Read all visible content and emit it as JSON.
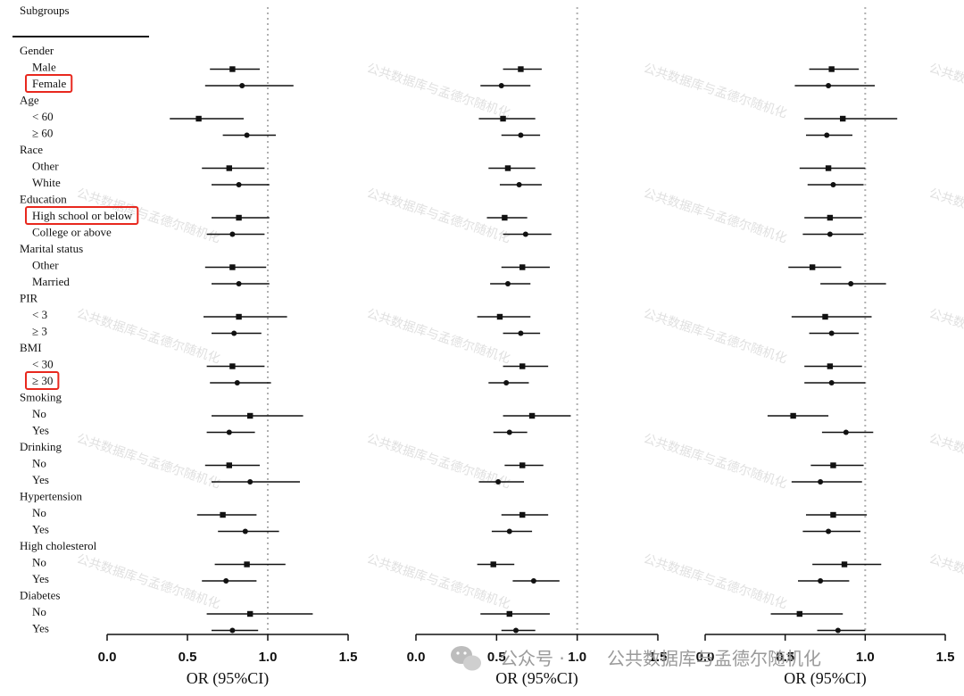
{
  "header": {
    "subgroups_label": "Subgroups"
  },
  "rows": [
    {
      "text": "Gender",
      "indent": false,
      "highlight": false
    },
    {
      "text": "Male",
      "indent": true,
      "highlight": false
    },
    {
      "text": "Female",
      "indent": true,
      "highlight": true
    },
    {
      "text": "Age",
      "indent": false,
      "highlight": false
    },
    {
      "text": "< 60",
      "indent": true,
      "highlight": false
    },
    {
      "text": "≥ 60",
      "indent": true,
      "highlight": false
    },
    {
      "text": "Race",
      "indent": false,
      "highlight": false
    },
    {
      "text": "Other",
      "indent": true,
      "highlight": false
    },
    {
      "text": "White",
      "indent": true,
      "highlight": false
    },
    {
      "text": "Education",
      "indent": false,
      "highlight": false
    },
    {
      "text": "High school or below",
      "indent": true,
      "highlight": true
    },
    {
      "text": "College or above",
      "indent": true,
      "highlight": false
    },
    {
      "text": "Marital status",
      "indent": false,
      "highlight": false
    },
    {
      "text": "Other",
      "indent": true,
      "highlight": false
    },
    {
      "text": "Married",
      "indent": true,
      "highlight": false
    },
    {
      "text": "PIR",
      "indent": false,
      "highlight": false
    },
    {
      "text": "< 3",
      "indent": true,
      "highlight": false
    },
    {
      "text": "≥ 3",
      "indent": true,
      "highlight": false
    },
    {
      "text": "BMI",
      "indent": false,
      "highlight": false
    },
    {
      "text": "< 30",
      "indent": true,
      "highlight": false
    },
    {
      "text": "≥ 30",
      "indent": true,
      "highlight": true
    },
    {
      "text": "Smoking",
      "indent": false,
      "highlight": false
    },
    {
      "text": "No",
      "indent": true,
      "highlight": false
    },
    {
      "text": "Yes",
      "indent": true,
      "highlight": false
    },
    {
      "text": "Drinking",
      "indent": false,
      "highlight": false
    },
    {
      "text": "No",
      "indent": true,
      "highlight": false
    },
    {
      "text": "Yes",
      "indent": true,
      "highlight": false
    },
    {
      "text": "Hypertension",
      "indent": false,
      "highlight": false
    },
    {
      "text": "No",
      "indent": true,
      "highlight": false
    },
    {
      "text": "Yes",
      "indent": true,
      "highlight": false
    },
    {
      "text": "High cholesterol",
      "indent": false,
      "highlight": false
    },
    {
      "text": "No",
      "indent": true,
      "highlight": false
    },
    {
      "text": "Yes",
      "indent": true,
      "highlight": false
    },
    {
      "text": "Diabetes",
      "indent": false,
      "highlight": false
    },
    {
      "text": "No",
      "indent": true,
      "highlight": false
    },
    {
      "text": "Yes",
      "indent": true,
      "highlight": false
    }
  ],
  "chart_data": [
    {
      "type": "forest",
      "xlabel": "OR (95%CI)",
      "xlim": [
        0,
        1.5
      ],
      "ticks": [
        "0.0",
        "0.5",
        "1.0",
        "1.5"
      ],
      "reference_line": 1.0,
      "points": [
        {
          "group": "Gender",
          "subgroup": "Male",
          "or": 0.78,
          "lo": 0.64,
          "hi": 0.95,
          "marker": "square"
        },
        {
          "group": "Gender",
          "subgroup": "Female",
          "or": 0.84,
          "lo": 0.61,
          "hi": 1.16,
          "marker": "circle"
        },
        {
          "group": "Age",
          "subgroup": "< 60",
          "or": 0.57,
          "lo": 0.39,
          "hi": 0.85,
          "marker": "square"
        },
        {
          "group": "Age",
          "subgroup": "≥ 60",
          "or": 0.87,
          "lo": 0.72,
          "hi": 1.05,
          "marker": "circle"
        },
        {
          "group": "Race",
          "subgroup": "Other",
          "or": 0.76,
          "lo": 0.59,
          "hi": 0.98,
          "marker": "square"
        },
        {
          "group": "Race",
          "subgroup": "White",
          "or": 0.82,
          "lo": 0.65,
          "hi": 1.01,
          "marker": "circle"
        },
        {
          "group": "Education",
          "subgroup": "High school or below",
          "or": 0.82,
          "lo": 0.65,
          "hi": 1.01,
          "marker": "square"
        },
        {
          "group": "Education",
          "subgroup": "College or above",
          "or": 0.78,
          "lo": 0.62,
          "hi": 0.98,
          "marker": "circle"
        },
        {
          "group": "Marital status",
          "subgroup": "Other",
          "or": 0.78,
          "lo": 0.61,
          "hi": 0.99,
          "marker": "square"
        },
        {
          "group": "Marital status",
          "subgroup": "Married",
          "or": 0.82,
          "lo": 0.65,
          "hi": 1.01,
          "marker": "circle"
        },
        {
          "group": "PIR",
          "subgroup": "< 3",
          "or": 0.82,
          "lo": 0.6,
          "hi": 1.12,
          "marker": "square"
        },
        {
          "group": "PIR",
          "subgroup": "≥ 3",
          "or": 0.79,
          "lo": 0.65,
          "hi": 0.96,
          "marker": "circle"
        },
        {
          "group": "BMI",
          "subgroup": "< 30",
          "or": 0.78,
          "lo": 0.62,
          "hi": 0.98,
          "marker": "square"
        },
        {
          "group": "BMI",
          "subgroup": "≥ 30",
          "or": 0.81,
          "lo": 0.64,
          "hi": 1.02,
          "marker": "circle"
        },
        {
          "group": "Smoking",
          "subgroup": "No",
          "or": 0.89,
          "lo": 0.65,
          "hi": 1.22,
          "marker": "square"
        },
        {
          "group": "Smoking",
          "subgroup": "Yes",
          "or": 0.76,
          "lo": 0.62,
          "hi": 0.92,
          "marker": "circle"
        },
        {
          "group": "Drinking",
          "subgroup": "No",
          "or": 0.76,
          "lo": 0.61,
          "hi": 0.95,
          "marker": "square"
        },
        {
          "group": "Drinking",
          "subgroup": "Yes",
          "or": 0.89,
          "lo": 0.65,
          "hi": 1.2,
          "marker": "circle"
        },
        {
          "group": "Hypertension",
          "subgroup": "No",
          "or": 0.72,
          "lo": 0.56,
          "hi": 0.93,
          "marker": "square"
        },
        {
          "group": "Hypertension",
          "subgroup": "Yes",
          "or": 0.86,
          "lo": 0.69,
          "hi": 1.07,
          "marker": "circle"
        },
        {
          "group": "High cholesterol",
          "subgroup": "No",
          "or": 0.87,
          "lo": 0.67,
          "hi": 1.11,
          "marker": "square"
        },
        {
          "group": "High cholesterol",
          "subgroup": "Yes",
          "or": 0.74,
          "lo": 0.59,
          "hi": 0.93,
          "marker": "circle"
        },
        {
          "group": "Diabetes",
          "subgroup": "No",
          "or": 0.89,
          "lo": 0.62,
          "hi": 1.28,
          "marker": "square"
        },
        {
          "group": "Diabetes",
          "subgroup": "Yes",
          "or": 0.78,
          "lo": 0.65,
          "hi": 0.94,
          "marker": "circle"
        }
      ]
    },
    {
      "type": "forest",
      "xlabel": "OR (95%CI)",
      "xlim": [
        0,
        1.5
      ],
      "ticks": [
        "0.0",
        "0.5",
        "1.0",
        "1.5"
      ],
      "reference_line": 1.0,
      "points": [
        {
          "group": "Gender",
          "subgroup": "Male",
          "or": 0.65,
          "lo": 0.54,
          "hi": 0.78,
          "marker": "square"
        },
        {
          "group": "Gender",
          "subgroup": "Female",
          "or": 0.53,
          "lo": 0.4,
          "hi": 0.71,
          "marker": "circle"
        },
        {
          "group": "Age",
          "subgroup": "< 60",
          "or": 0.54,
          "lo": 0.39,
          "hi": 0.74,
          "marker": "square"
        },
        {
          "group": "Age",
          "subgroup": "≥ 60",
          "or": 0.65,
          "lo": 0.53,
          "hi": 0.77,
          "marker": "circle"
        },
        {
          "group": "Race",
          "subgroup": "Other",
          "or": 0.57,
          "lo": 0.45,
          "hi": 0.74,
          "marker": "square"
        },
        {
          "group": "Race",
          "subgroup": "White",
          "or": 0.64,
          "lo": 0.52,
          "hi": 0.78,
          "marker": "circle"
        },
        {
          "group": "Education",
          "subgroup": "High school or below",
          "or": 0.55,
          "lo": 0.44,
          "hi": 0.69,
          "marker": "square"
        },
        {
          "group": "Education",
          "subgroup": "College or above",
          "or": 0.68,
          "lo": 0.54,
          "hi": 0.84,
          "marker": "circle"
        },
        {
          "group": "Marital status",
          "subgroup": "Other",
          "or": 0.66,
          "lo": 0.53,
          "hi": 0.83,
          "marker": "square"
        },
        {
          "group": "Marital status",
          "subgroup": "Married",
          "or": 0.57,
          "lo": 0.46,
          "hi": 0.71,
          "marker": "circle"
        },
        {
          "group": "PIR",
          "subgroup": "< 3",
          "or": 0.52,
          "lo": 0.38,
          "hi": 0.71,
          "marker": "square"
        },
        {
          "group": "PIR",
          "subgroup": "≥ 3",
          "or": 0.65,
          "lo": 0.54,
          "hi": 0.77,
          "marker": "circle"
        },
        {
          "group": "BMI",
          "subgroup": "< 30",
          "or": 0.66,
          "lo": 0.54,
          "hi": 0.82,
          "marker": "square"
        },
        {
          "group": "BMI",
          "subgroup": "≥ 30",
          "or": 0.56,
          "lo": 0.45,
          "hi": 0.7,
          "marker": "circle"
        },
        {
          "group": "Smoking",
          "subgroup": "No",
          "or": 0.72,
          "lo": 0.54,
          "hi": 0.96,
          "marker": "square"
        },
        {
          "group": "Smoking",
          "subgroup": "Yes",
          "or": 0.58,
          "lo": 0.48,
          "hi": 0.69,
          "marker": "circle"
        },
        {
          "group": "Drinking",
          "subgroup": "No",
          "or": 0.66,
          "lo": 0.55,
          "hi": 0.79,
          "marker": "square"
        },
        {
          "group": "Drinking",
          "subgroup": "Yes",
          "or": 0.51,
          "lo": 0.39,
          "hi": 0.67,
          "marker": "circle"
        },
        {
          "group": "Hypertension",
          "subgroup": "No",
          "or": 0.66,
          "lo": 0.53,
          "hi": 0.82,
          "marker": "square"
        },
        {
          "group": "Hypertension",
          "subgroup": "Yes",
          "or": 0.58,
          "lo": 0.47,
          "hi": 0.72,
          "marker": "circle"
        },
        {
          "group": "High cholesterol",
          "subgroup": "No",
          "or": 0.48,
          "lo": 0.38,
          "hi": 0.61,
          "marker": "square"
        },
        {
          "group": "High cholesterol",
          "subgroup": "Yes",
          "or": 0.73,
          "lo": 0.6,
          "hi": 0.89,
          "marker": "circle"
        },
        {
          "group": "Diabetes",
          "subgroup": "No",
          "or": 0.58,
          "lo": 0.4,
          "hi": 0.83,
          "marker": "square"
        },
        {
          "group": "Diabetes",
          "subgroup": "Yes",
          "or": 0.62,
          "lo": 0.53,
          "hi": 0.74,
          "marker": "circle"
        }
      ]
    },
    {
      "type": "forest",
      "xlabel": "OR (95%CI)",
      "xlim": [
        0,
        1.5
      ],
      "ticks": [
        "0.0",
        "0.5",
        "1.0",
        "1.5"
      ],
      "reference_line": 1.0,
      "points": [
        {
          "group": "Gender",
          "subgroup": "Male",
          "or": 0.79,
          "lo": 0.65,
          "hi": 0.96,
          "marker": "square"
        },
        {
          "group": "Gender",
          "subgroup": "Female",
          "or": 0.77,
          "lo": 0.56,
          "hi": 1.06,
          "marker": "circle"
        },
        {
          "group": "Age",
          "subgroup": "< 60",
          "or": 0.86,
          "lo": 0.62,
          "hi": 1.2,
          "marker": "square"
        },
        {
          "group": "Age",
          "subgroup": "≥ 60",
          "or": 0.76,
          "lo": 0.63,
          "hi": 0.92,
          "marker": "circle"
        },
        {
          "group": "Race",
          "subgroup": "Other",
          "or": 0.77,
          "lo": 0.59,
          "hi": 1.0,
          "marker": "square"
        },
        {
          "group": "Race",
          "subgroup": "White",
          "or": 0.8,
          "lo": 0.64,
          "hi": 0.99,
          "marker": "circle"
        },
        {
          "group": "Education",
          "subgroup": "High school or below",
          "or": 0.78,
          "lo": 0.62,
          "hi": 0.98,
          "marker": "square"
        },
        {
          "group": "Education",
          "subgroup": "College or above",
          "or": 0.78,
          "lo": 0.61,
          "hi": 0.99,
          "marker": "circle"
        },
        {
          "group": "Marital status",
          "subgroup": "Other",
          "or": 0.67,
          "lo": 0.52,
          "hi": 0.85,
          "marker": "square"
        },
        {
          "group": "Marital status",
          "subgroup": "Married",
          "or": 0.91,
          "lo": 0.72,
          "hi": 1.13,
          "marker": "circle"
        },
        {
          "group": "PIR",
          "subgroup": "< 3",
          "or": 0.75,
          "lo": 0.54,
          "hi": 1.04,
          "marker": "square"
        },
        {
          "group": "PIR",
          "subgroup": "≥ 3",
          "or": 0.79,
          "lo": 0.65,
          "hi": 0.96,
          "marker": "circle"
        },
        {
          "group": "BMI",
          "subgroup": "< 30",
          "or": 0.78,
          "lo": 0.62,
          "hi": 0.98,
          "marker": "square"
        },
        {
          "group": "BMI",
          "subgroup": "≥ 30",
          "or": 0.79,
          "lo": 0.62,
          "hi": 1.0,
          "marker": "circle"
        },
        {
          "group": "Smoking",
          "subgroup": "No",
          "or": 0.55,
          "lo": 0.39,
          "hi": 0.77,
          "marker": "square"
        },
        {
          "group": "Smoking",
          "subgroup": "Yes",
          "or": 0.88,
          "lo": 0.73,
          "hi": 1.05,
          "marker": "circle"
        },
        {
          "group": "Drinking",
          "subgroup": "No",
          "or": 0.8,
          "lo": 0.66,
          "hi": 0.99,
          "marker": "square"
        },
        {
          "group": "Drinking",
          "subgroup": "Yes",
          "or": 0.72,
          "lo": 0.54,
          "hi": 0.98,
          "marker": "circle"
        },
        {
          "group": "Hypertension",
          "subgroup": "No",
          "or": 0.8,
          "lo": 0.63,
          "hi": 1.01,
          "marker": "square"
        },
        {
          "group": "Hypertension",
          "subgroup": "Yes",
          "or": 0.77,
          "lo": 0.61,
          "hi": 0.97,
          "marker": "circle"
        },
        {
          "group": "High cholesterol",
          "subgroup": "No",
          "or": 0.87,
          "lo": 0.67,
          "hi": 1.1,
          "marker": "square"
        },
        {
          "group": "High cholesterol",
          "subgroup": "Yes",
          "or": 0.72,
          "lo": 0.58,
          "hi": 0.9,
          "marker": "circle"
        },
        {
          "group": "Diabetes",
          "subgroup": "No",
          "or": 0.59,
          "lo": 0.41,
          "hi": 0.86,
          "marker": "square"
        },
        {
          "group": "Diabetes",
          "subgroup": "Yes",
          "or": 0.83,
          "lo": 0.7,
          "hi": 1.0,
          "marker": "circle"
        }
      ]
    }
  ],
  "watermarks": {
    "text": "公共数据库与孟德尔随机化",
    "footer_prefix": "公众号 ·",
    "footer_text": "公共数据库与孟德尔随机化"
  },
  "colors": {
    "highlight": "#e8281e",
    "ink": "#111111",
    "refline": "#b0b0b0"
  }
}
